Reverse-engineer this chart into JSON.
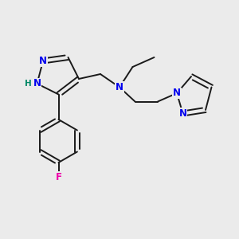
{
  "background_color": "#ebebeb",
  "bond_color": "#1a1a1a",
  "atom_colors": {
    "N": "#0000ee",
    "H": "#008866",
    "F": "#ee00aa"
  },
  "font_size": 8.5,
  "bond_width": 1.4
}
